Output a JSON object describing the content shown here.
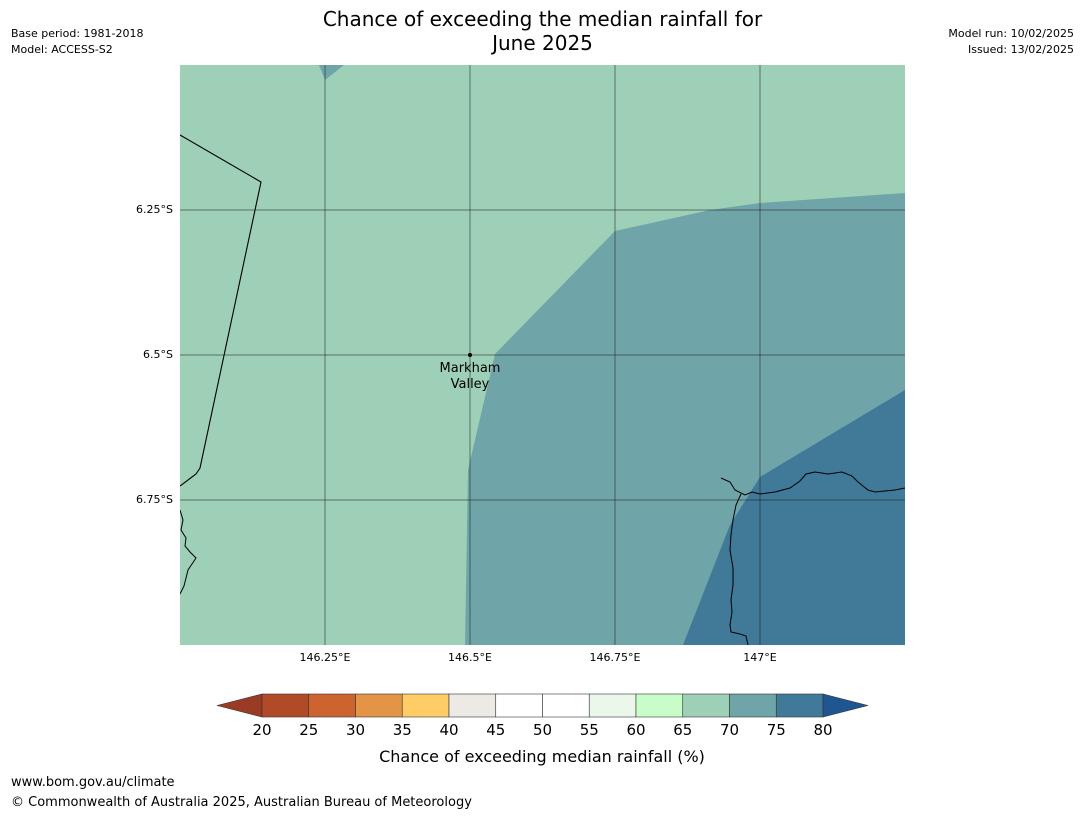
{
  "title_line1": "Chance of exceeding the median rainfall for",
  "title_line2": "June 2025",
  "base_period": "Base period: 1981-2018",
  "model": "Model: ACCESS-S2",
  "model_run": "Model run: 10/02/2025",
  "issued": "Issued: 13/02/2025",
  "lat_ticks": [
    "6.25°S",
    "6.5°S",
    "6.75°S"
  ],
  "lon_ticks": [
    "146.25°E",
    "146.5°E",
    "146.75°E",
    "147°E"
  ],
  "place": {
    "line1": "Markham",
    "line2": "Valley"
  },
  "colorbar": {
    "label": "Chance of exceeding median rainfall (%)",
    "ticks": [
      "20",
      "25",
      "30",
      "35",
      "40",
      "45",
      "50",
      "55",
      "60",
      "65",
      "70",
      "75",
      "80"
    ],
    "colors": [
      "#b14a26",
      "#cd6430",
      "#e39446",
      "#ffcc66",
      "#ede9e5",
      "#ffffff",
      "#ffffff",
      "#eaf7ea",
      "#c8fcc8",
      "#9ed0b8",
      "#6fa5a8",
      "#407a98"
    ],
    "under_color": "#9c3b25",
    "over_color": "#1f5591"
  },
  "map_colors": {
    "band_65_70": "#9ed0b8",
    "band_70_75": "#6fa5a8",
    "band_75_80": "#407a98"
  },
  "footer_url": "www.bom.gov.au/climate",
  "footer_copyright": "© Commonwealth of Australia 2025, Australian Bureau of Meteorology"
}
